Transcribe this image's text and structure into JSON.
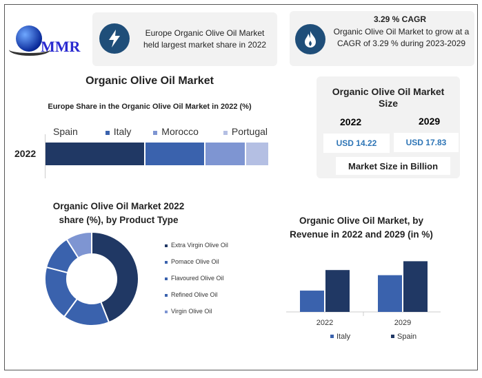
{
  "logo": {
    "text": "MMR"
  },
  "card1": {
    "text": "Europe Organic Olive Oil Market held largest market share in 2022",
    "icon": "lightning-icon"
  },
  "card2": {
    "title": "3.29 % CAGR",
    "text": "Organic Olive Oil Market to grow at a CAGR of 3.29 % during 2023-2029",
    "icon": "flame-icon"
  },
  "main_title": "Organic Olive Oil Market",
  "size_card": {
    "title": "Organic Olive Oil Market Size",
    "year1": "2022",
    "year2": "2029",
    "value1": "USD 14.22",
    "value2": "USD 17.83",
    "unit": "Market Size in Billion"
  },
  "colors": {
    "dark": "#203864",
    "mid": "#3a62ad",
    "light": "#7e95d2",
    "lightest": "#b4bfe3",
    "icon": "#1f4e79"
  },
  "chart_data": [
    {
      "type": "bar",
      "stacked": true,
      "orientation": "horizontal",
      "title": "Europe Share in the Organic Olive Oil Market in 2022 (%)",
      "categories": [
        "2022"
      ],
      "series": [
        {
          "name": "Spain",
          "values": [
            45
          ]
        },
        {
          "name": "Italy",
          "values": [
            27
          ]
        },
        {
          "name": "Morocco",
          "values": [
            18
          ]
        },
        {
          "name": "Portugal",
          "values": [
            10
          ]
        }
      ],
      "legend": "top"
    },
    {
      "type": "pie",
      "donut": true,
      "title": "Organic Olive Oil Market 2022 share (%), by Product Type",
      "labels": [
        "Extra Virgin Olive Oil",
        "Pomace Olive Oil",
        "Flavoured Olive Oil",
        "Refined Olive Oil",
        "Virgin Olive Oil"
      ],
      "values": [
        44,
        16,
        19,
        12,
        9
      ],
      "legend": "right"
    },
    {
      "type": "bar",
      "title": "Organic Olive Oil Market, by Revenue in 2022 and 2029 (in %)",
      "categories": [
        "2022",
        "2029"
      ],
      "series": [
        {
          "name": "Italy",
          "values": [
            29,
            50
          ]
        },
        {
          "name": "Spain",
          "values": [
            57,
            69
          ]
        }
      ],
      "ylim": [
        0,
        75
      ],
      "legend": "bottom"
    }
  ]
}
